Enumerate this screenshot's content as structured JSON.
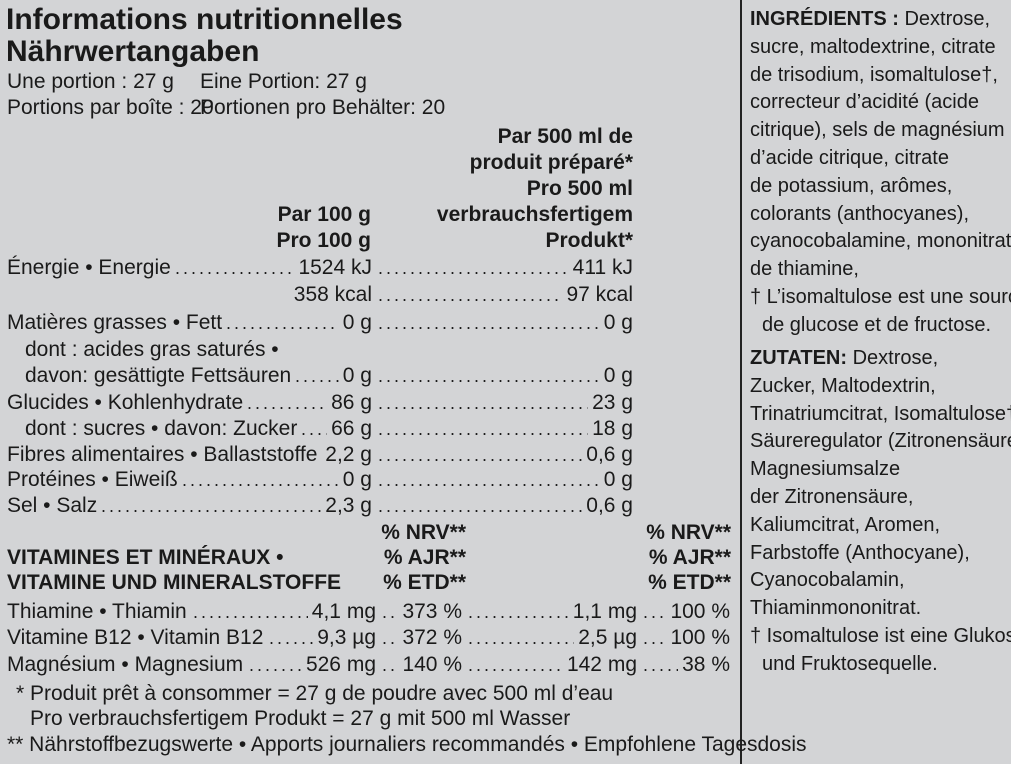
{
  "title_fr": "Informations nutritionnelles",
  "title_de": "Nährwertangaben",
  "portion_fr": "Une portion : 27 g",
  "portion_de": "Eine Portion: 27 g",
  "servings_fr": "Portions par boîte : 20",
  "servings_de": "Portionen pro Behälter: 20",
  "col2_header": [
    "Par 500 ml de",
    "produit préparé*",
    "Pro 500 ml",
    "verbrauchsfertigem",
    "Produkt*"
  ],
  "col1_header": [
    "Par 100 g",
    "Pro 100 g"
  ],
  "nutrients": [
    {
      "label": "Énergie • Energie",
      "v1": "1524 kJ",
      "v2": "411 kJ"
    },
    {
      "label": "",
      "v1": "358 kcal",
      "v2": "97 kcal"
    },
    {
      "label": "Matières grasses • Fett",
      "v1": "0 g",
      "v2": "0 g"
    },
    {
      "label": "dont : acides gras saturés •",
      "v1": "",
      "v2": ""
    },
    {
      "label": "davon: gesättigte Fettsäuren",
      "v1": "0 g",
      "v2": "0 g"
    },
    {
      "label": "Glucides • Kohlenhydrate",
      "v1": "86 g",
      "v2": "23 g"
    },
    {
      "label": "dont : sucres • davon: Zucker",
      "v1": "66 g",
      "v2": "18 g"
    },
    {
      "label": "Fibres alimentaires • Ballaststoffe",
      "v1": "2,2 g",
      "v2": "0,6 g"
    },
    {
      "label": "Protéines • Eiweiß",
      "v1": "0 g",
      "v2": "0 g"
    },
    {
      "label": "Sel • Salz",
      "v1": "2,3 g",
      "v2": "0,6 g"
    }
  ],
  "vit_heading": [
    "VITAMINES ET MINÉRAUX •",
    "VITAMINE UND MINERALSTOFFE"
  ],
  "nrv_header": [
    "% NRV**",
    "% AJR**",
    "% ETD**"
  ],
  "vitamins": [
    {
      "label": "Thiamine • Thiamin",
      "a1": "4,1 mg",
      "p1": "373 %",
      "a2": "1,1 mg",
      "p2": "100 %"
    },
    {
      "label": "Vitamine B12 • Vitamin B12",
      "a1": "9,3 µg",
      "p1": "372 %",
      "a2": "2,5 µg",
      "p2": "100 %"
    },
    {
      "label": "Magnésium • Magnesium",
      "a1": "526 mg",
      "p1": "140 %",
      "a2": "142 mg",
      "p2": "38 %"
    }
  ],
  "footnotes": [
    "* Produit prêt à consommer = 27 g de poudre avec 500 ml d’eau",
    "Pro verbrauchsfertigem Produkt = 27 g mit 500 ml Wasser",
    "** Nährstoffbezugswerte • Apports journaliers recommandés • Empfohlene Tagesdosis"
  ],
  "ingredients": {
    "fr_label": "INGRÉDIENTS :",
    "fr_lines": [
      " Dextrose,",
      "sucre, maltodextrine, citrate",
      "de trisodium, isomaltulose†,",
      "correcteur d’acidité (acide",
      "citrique), sels de magnésium",
      "d’acide citrique, citrate",
      "de potassium, arômes,",
      "colorants (anthocyanes),",
      "cyanocobalamine, mononitrate",
      "de thiamine,",
      "† L’isomaltulose est une source",
      "de glucose et de fructose."
    ],
    "de_label": "ZUTATEN:",
    "de_lines": [
      " Dextrose,",
      "Zucker, Maltodextrin,",
      "Trinatriumcitrat, Isomaltulose†,",
      "Säureregulator (Zitronensäure),",
      "Magnesiumsalze",
      "der Zitronensäure,",
      "Kaliumcitrat, Aromen,",
      "Farbstoffe (Anthocyane),",
      "Cyanocobalamin,",
      "Thiaminmononitrat.",
      "† Isomaltulose ist eine Glukose-",
      "und Fruktosequelle."
    ]
  }
}
